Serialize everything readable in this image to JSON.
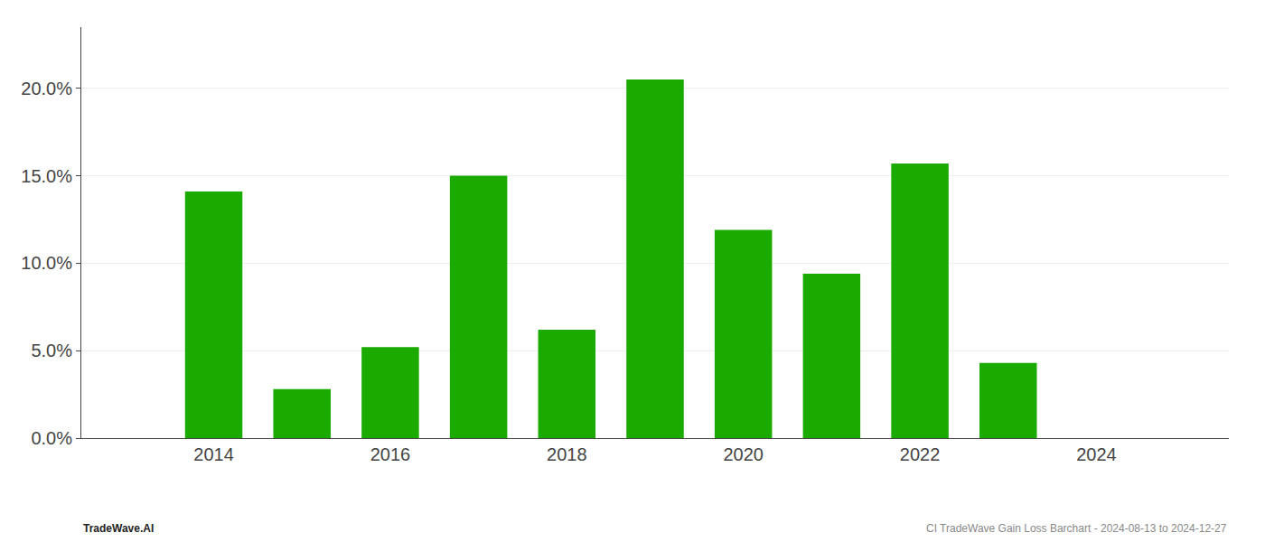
{
  "chart_data": {
    "type": "bar",
    "x": [
      2014,
      2015,
      2016,
      2017,
      2018,
      2019,
      2020,
      2021,
      2022,
      2023
    ],
    "values": [
      0.141,
      0.028,
      0.052,
      0.15,
      0.062,
      0.205,
      0.119,
      0.094,
      0.157,
      0.043
    ],
    "color": "#1aaa00",
    "xlim": [
      2012.5,
      2025.5
    ],
    "xticks": [
      2014,
      2016,
      2018,
      2020,
      2022,
      2024
    ],
    "ylim": [
      0,
      0.235
    ],
    "yticks": [
      {
        "value": 0.0,
        "label": "0.0%"
      },
      {
        "value": 0.05,
        "label": "5.0%"
      },
      {
        "value": 0.1,
        "label": "10.0%"
      },
      {
        "value": 0.15,
        "label": "15.0%"
      },
      {
        "value": 0.2,
        "label": "20.0%"
      }
    ],
    "grid": true,
    "annotations": [
      "TradeWave.AI",
      "CI TradeWave Gain Loss Barchart - 2024-08-13 to 2024-12-27"
    ]
  }
}
